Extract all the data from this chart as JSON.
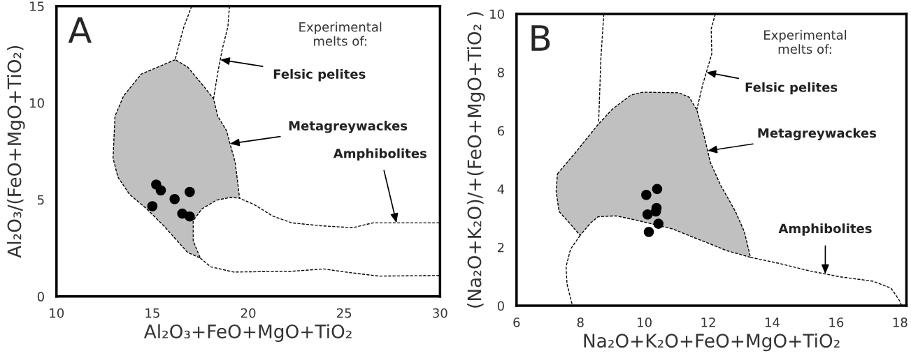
{
  "chart_data": [
    {
      "type": "scatter",
      "title": "A",
      "xlabel": "Al₂O₃+FeO+MgO+TiO₂",
      "ylabel": "Al₂O₃/(FeO+MgO+TiO₂)",
      "xlim": [
        10,
        30
      ],
      "ylim": [
        0,
        15
      ],
      "xticks": [
        10,
        15,
        20,
        25,
        30
      ],
      "yticks": [
        0,
        5,
        10,
        15
      ],
      "grid": false,
      "series": [
        {
          "type": "area",
          "color": "#c0c0c0",
          "line_style": "dashed",
          "x": [
            16.19,
            14.41,
            13.5,
            13.05,
            12.95,
            13.2,
            13.81,
            14.71,
            15.62,
            16.83,
            17.5,
            17.13,
            17.13,
            17.58,
            18.34,
            19.09,
            19.55,
            19.32,
            19.05,
            18.87,
            18.41,
            18.19,
            17.66,
            16.83
          ],
          "values": [
            12.23,
            11.48,
            10.36,
            9.31,
            7.14,
            6.17,
            5.27,
            4.52,
            3.62,
            2.28,
            1.98,
            2.87,
            3.92,
            4.52,
            4.97,
            5.12,
            5.07,
            6.92,
            7.89,
            8.56,
            9.31,
            10.21,
            10.88,
            11.86
          ]
        },
        {
          "type": "line",
          "color": "#000000",
          "line_style": "dashed",
          "x": [
            17.05,
            16.6,
            16.4,
            16.19
          ],
          "values": [
            15.0,
            13.8,
            13.05,
            12.23
          ]
        },
        {
          "type": "line",
          "color": "#000000",
          "line_style": "dashed",
          "x": [
            19.02,
            18.94,
            18.64,
            18.54,
            18.41,
            18.19
          ],
          "values": [
            15.0,
            13.95,
            12.75,
            12.23,
            11.56,
            10.21
          ]
        },
        {
          "type": "line",
          "color": "#000000",
          "line_style": "dashed",
          "x": [
            29.97,
            27.73,
            26.5,
            25.44,
            23.78,
            22.27,
            21.28,
            20.3,
            19.55
          ],
          "values": [
            3.8,
            3.8,
            3.8,
            3.55,
            3.65,
            3.8,
            4.15,
            4.75,
            5.07
          ]
        },
        {
          "type": "line",
          "color": "#000000",
          "line_style": "dashed",
          "x": [
            17.5,
            18.04,
            19.24,
            22.27,
            23.93,
            25.29,
            26.8,
            29.97
          ],
          "values": [
            1.98,
            1.53,
            1.26,
            1.3,
            1.42,
            1.23,
            1.05,
            1.08
          ]
        },
        {
          "color": "#000000",
          "marker": "circle",
          "x": [
            15.2,
            15.44,
            16.16,
            16.95,
            15.0,
            16.56,
            16.95
          ],
          "values": [
            5.78,
            5.48,
            5.03,
            5.4,
            4.66,
            4.28,
            4.13
          ]
        }
      ],
      "annotations": [
        "Experimental\nmelts of:",
        {
          "text": "Felsic pelites",
          "x": 18.54,
          "y": 12.23
        },
        {
          "text": "Metagreywackes",
          "x": 19.05,
          "y": 7.89
        },
        {
          "text": "Amphibolites",
          "x": 27.73,
          "y": 3.8
        }
      ]
    },
    {
      "type": "scatter",
      "title": "B",
      "xlabel": "Na₂O+K₂O+FeO+MgO+TiO₂",
      "ylabel": "(Na₂O+K₂O)/+(FeO+MgO+TiO₂ )",
      "xlim": [
        6,
        18.2
      ],
      "ylim": [
        0,
        10
      ],
      "xticks": [
        6,
        8,
        10,
        12,
        14,
        16,
        18
      ],
      "yticks": [
        0,
        2,
        4,
        6,
        8,
        10
      ],
      "grid": false,
      "series": [
        {
          "type": "area",
          "color": "#c0c0c0",
          "line_style": "dashed",
          "x": [
            7.28,
            7.89,
            8.55,
            9.01,
            9.58,
            9.95,
            11.07,
            11.4,
            11.64,
            11.87,
            11.98,
            12.06,
            12.39,
            12.85,
            13.13,
            13.32,
            12.57,
            12.01,
            11.45,
            10.89,
            9.76,
            9.11,
            8.55,
            8.31,
            7.99,
            7.66,
            7.33,
            7.24
          ],
          "values": [
            4.52,
            5.31,
            6.21,
            6.75,
            7.22,
            7.32,
            7.3,
            7.15,
            6.72,
            5.81,
            5.31,
            4.92,
            4.12,
            3.23,
            2.53,
            1.66,
            1.89,
            2.14,
            2.38,
            2.63,
            2.93,
            3.08,
            3.05,
            2.83,
            2.41,
            2.83,
            3.23,
            3.92
          ]
        },
        {
          "type": "line",
          "color": "#000000",
          "line_style": "dashed",
          "x": [
            8.73,
            8.64,
            8.57
          ],
          "values": [
            10.0,
            8.49,
            6.31
          ]
        },
        {
          "type": "line",
          "color": "#000000",
          "line_style": "dashed",
          "x": [
            12.22,
            12.09,
            12.11,
            11.94,
            11.83,
            11.64
          ],
          "values": [
            10.0,
            9.48,
            8.64,
            8.0,
            7.6,
            6.72
          ]
        },
        {
          "type": "line",
          "color": "#000000",
          "line_style": "dashed",
          "x": [
            13.32,
            14.26,
            15.19,
            15.66,
            16.13,
            17.16,
            17.72,
            18.0,
            18.05
          ],
          "values": [
            1.66,
            1.44,
            1.19,
            1.09,
            0.99,
            0.84,
            0.6,
            0.15,
            0.0
          ]
        },
        {
          "type": "line",
          "color": "#000000",
          "line_style": "dashed",
          "x": [
            7.99,
            7.69,
            7.55,
            7.58,
            7.75
          ],
          "values": [
            2.41,
            1.94,
            1.34,
            0.74,
            0.0
          ]
        },
        {
          "color": "#000000",
          "marker": "circle",
          "x": [
            10.06,
            10.4,
            10.38,
            10.36,
            10.1,
            10.44,
            10.14
          ],
          "values": [
            3.8,
            4.0,
            3.35,
            3.23,
            3.13,
            2.81,
            2.53
          ]
        }
      ],
      "annotations": [
        "Experimental\nmelts of:",
        {
          "text": "Felsic pelites",
          "x": 11.94,
          "y": 8.0
        },
        {
          "text": "Metagreywackes",
          "x": 11.98,
          "y": 5.31
        },
        {
          "text": "Amphibolites",
          "x": 15.66,
          "y": 1.09
        }
      ]
    }
  ]
}
